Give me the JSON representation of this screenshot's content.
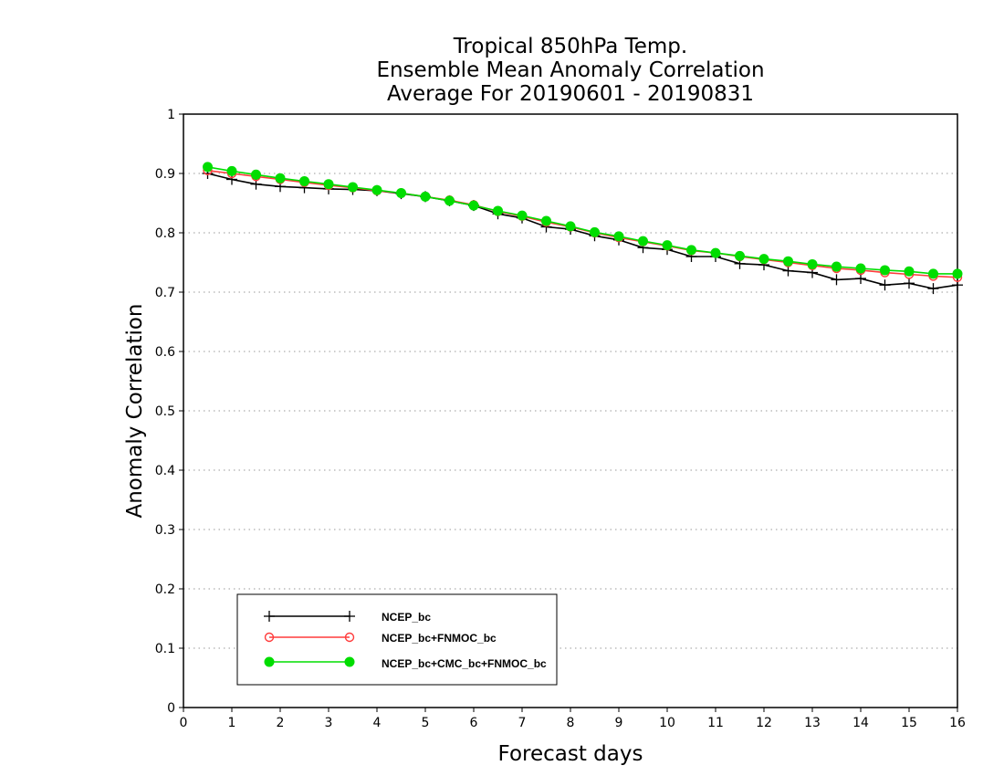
{
  "chart_data": {
    "type": "line",
    "title_lines": [
      "Tropical 850hPa Temp.",
      "Ensemble Mean Anomaly Correlation",
      "Average For 20190601 - 20190831"
    ],
    "xlabel": "Forecast days",
    "ylabel": "Anomaly Correlation",
    "xlim": [
      0,
      16
    ],
    "ylim": [
      0,
      1
    ],
    "x_ticks": [
      "0",
      "1",
      "2",
      "3",
      "4",
      "5",
      "6",
      "7",
      "8",
      "9",
      "10",
      "11",
      "12",
      "13",
      "14",
      "15",
      "16"
    ],
    "y_ticks": [
      "0",
      "0.1",
      "0.2",
      "0.3",
      "0.4",
      "0.5",
      "0.6",
      "0.7",
      "0.8",
      "0.9",
      "1"
    ],
    "grid": "horizontal dotted",
    "legend_position": "bottom-left",
    "x": [
      0.5,
      1,
      1.5,
      2,
      2.5,
      3,
      3.5,
      4,
      4.5,
      5,
      5.5,
      6,
      6.5,
      7,
      7.5,
      8,
      8.5,
      9,
      9.5,
      10,
      10.5,
      11,
      11.5,
      12,
      12.5,
      13,
      13.5,
      14,
      14.5,
      15,
      15.5,
      16
    ],
    "series": [
      {
        "name": "NCEP_bc",
        "color": "#000000",
        "marker": "plus",
        "values": [
          0.9,
          0.89,
          0.882,
          0.878,
          0.876,
          0.874,
          0.873,
          0.871,
          0.866,
          0.861,
          0.854,
          0.846,
          0.832,
          0.825,
          0.81,
          0.806,
          0.795,
          0.788,
          0.775,
          0.772,
          0.76,
          0.76,
          0.748,
          0.746,
          0.736,
          0.733,
          0.721,
          0.723,
          0.712,
          0.715,
          0.706,
          0.712
        ]
      },
      {
        "name": "NCEP_bc+FNMOC_bc",
        "color": "#ff3b3b",
        "marker": "open-circle",
        "values": [
          0.905,
          0.9,
          0.895,
          0.89,
          0.885,
          0.88,
          0.876,
          0.871,
          0.867,
          0.861,
          0.855,
          0.847,
          0.836,
          0.828,
          0.818,
          0.81,
          0.8,
          0.792,
          0.785,
          0.778,
          0.77,
          0.766,
          0.76,
          0.755,
          0.75,
          0.745,
          0.74,
          0.737,
          0.733,
          0.73,
          0.727,
          0.725
        ]
      },
      {
        "name": "NCEP_bc+CMC_bc+FNMOC_bc",
        "color": "#00dd00",
        "marker": "filled-circle",
        "values": [
          0.911,
          0.904,
          0.898,
          0.892,
          0.887,
          0.882,
          0.877,
          0.872,
          0.867,
          0.861,
          0.854,
          0.846,
          0.837,
          0.829,
          0.82,
          0.811,
          0.801,
          0.794,
          0.786,
          0.779,
          0.771,
          0.766,
          0.761,
          0.756,
          0.752,
          0.747,
          0.743,
          0.74,
          0.737,
          0.735,
          0.731,
          0.731
        ]
      }
    ]
  }
}
